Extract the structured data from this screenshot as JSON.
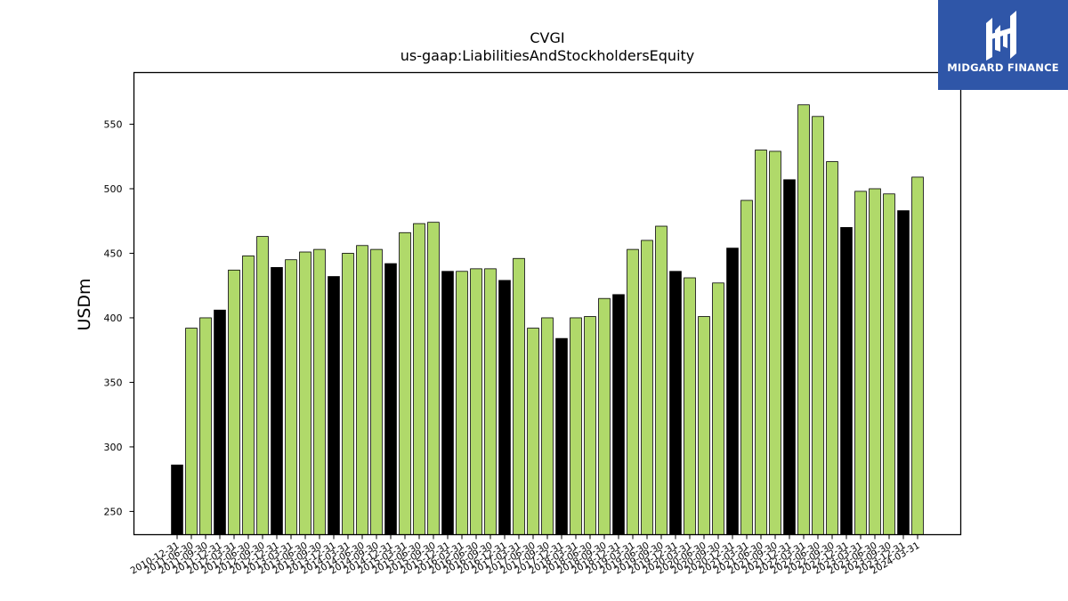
{
  "chart_data": {
    "type": "bar",
    "title": "CVGI",
    "subtitle": "us-gaap:LiabilitiesAndStockholdersEquity",
    "xlabel": "",
    "ylabel": "USDm",
    "ylim": [
      232,
      590
    ],
    "yticks": [
      250,
      300,
      350,
      400,
      450,
      500,
      550
    ],
    "grid": false,
    "colors": {
      "quarter": "#b0d96a",
      "year_end": "#000000",
      "edge": "#000000"
    },
    "categories": [
      "2010-12-31",
      "2011-06-30",
      "2011-09-30",
      "2011-12-31",
      "2012-03-31",
      "2012-06-30",
      "2012-09-30",
      "2012-12-31",
      "2013-03-31",
      "2013-06-30",
      "2013-09-30",
      "2013-12-31",
      "2014-03-31",
      "2014-06-30",
      "2014-09-30",
      "2014-12-31",
      "2015-03-31",
      "2015-06-30",
      "2015-09-30",
      "2015-12-31",
      "2016-03-31",
      "2016-06-30",
      "2016-09-30",
      "2016-12-31",
      "2017-03-31",
      "2017-06-30",
      "2017-09-30",
      "2017-12-31",
      "2018-03-31",
      "2018-06-30",
      "2018-09-30",
      "2018-12-31",
      "2019-03-31",
      "2019-06-30",
      "2019-09-30",
      "2019-12-31",
      "2020-03-31",
      "2020-06-30",
      "2020-09-30",
      "2020-12-31",
      "2021-03-31",
      "2021-06-30",
      "2021-09-30",
      "2021-12-31",
      "2022-03-31",
      "2022-06-30",
      "2022-09-30",
      "2022-12-31",
      "2023-03-31",
      "2023-06-30",
      "2023-09-30",
      "2023-12-31",
      "2024-03-31"
    ],
    "values": [
      286,
      392,
      400,
      406,
      437,
      448,
      463,
      439,
      445,
      451,
      453,
      432,
      450,
      456,
      453,
      442,
      466,
      473,
      474,
      436,
      436,
      438,
      438,
      429,
      446,
      392,
      400,
      384,
      400,
      401,
      415,
      418,
      453,
      460,
      471,
      436,
      431,
      401,
      427,
      454,
      491,
      530,
      529,
      507,
      565,
      556,
      521,
      470,
      498,
      500,
      496,
      483,
      509
    ],
    "year_end": [
      true,
      false,
      false,
      true,
      false,
      false,
      false,
      true,
      false,
      false,
      false,
      true,
      false,
      false,
      false,
      true,
      false,
      false,
      false,
      true,
      false,
      false,
      false,
      true,
      false,
      false,
      false,
      true,
      false,
      false,
      false,
      true,
      false,
      false,
      false,
      true,
      false,
      false,
      false,
      true,
      false,
      false,
      false,
      true,
      false,
      false,
      false,
      true,
      false,
      false,
      false,
      true,
      false
    ]
  },
  "logo": {
    "text": "MIDGARD FINANCE",
    "icon": "midgard-logo-icon"
  }
}
